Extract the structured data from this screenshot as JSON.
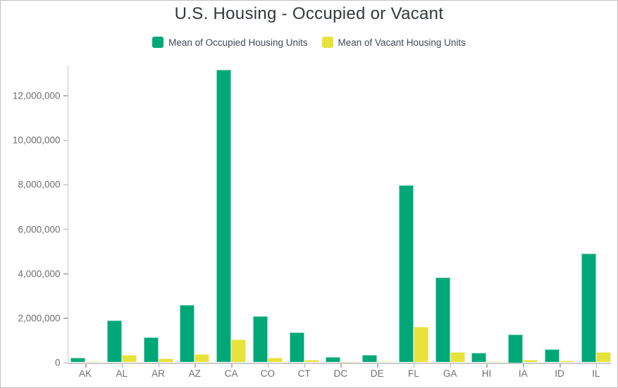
{
  "title": "U.S. Housing - Occupied or Vacant",
  "legend": {
    "items": [
      {
        "label": "Mean of Occupied Housing Units",
        "color": "#00a878"
      },
      {
        "label": "Mean of Vacant Housing Units",
        "color": "#e8e23c"
      }
    ]
  },
  "chart_data": {
    "type": "bar",
    "title": "U.S. Housing - Occupied or Vacant",
    "categories": [
      "AK",
      "AL",
      "AR",
      "AZ",
      "CA",
      "CO",
      "CT",
      "DC",
      "DE",
      "FL",
      "GA",
      "HI",
      "IA",
      "ID",
      "IL"
    ],
    "series": [
      {
        "name": "Mean of Occupied Housing Units",
        "color": "#00a878",
        "values": [
          210000,
          1880000,
          1120000,
          2590000,
          13150000,
          2080000,
          1350000,
          230000,
          340000,
          7950000,
          3820000,
          420000,
          1250000,
          590000,
          4880000
        ]
      },
      {
        "name": "Mean of Vacant Housing Units",
        "color": "#e8e23c",
        "values": [
          60000,
          340000,
          180000,
          350000,
          1040000,
          190000,
          100000,
          30000,
          60000,
          1590000,
          450000,
          60000,
          110000,
          80000,
          450000
        ]
      }
    ],
    "xlabel": "",
    "ylabel": "",
    "ylim": [
      0,
      13340000
    ],
    "ytick_interval": 2000000,
    "yticks": [
      0,
      2000000,
      4000000,
      6000000,
      8000000,
      10000000,
      12000000
    ],
    "ytick_labels": [
      "0",
      "2,000,000",
      "4,000,000",
      "6,000,000",
      "8,000,000",
      "10,000,000",
      "12,000,000"
    ],
    "grid": false,
    "legend_position": "top-center"
  },
  "colors": {
    "occupied": "#00a878",
    "vacant": "#e8e23c",
    "title_text": "#33383d",
    "legend_text": "#3f4a54",
    "axis_text": "#6e6e6e",
    "axis_line": "#c9c9c9"
  }
}
